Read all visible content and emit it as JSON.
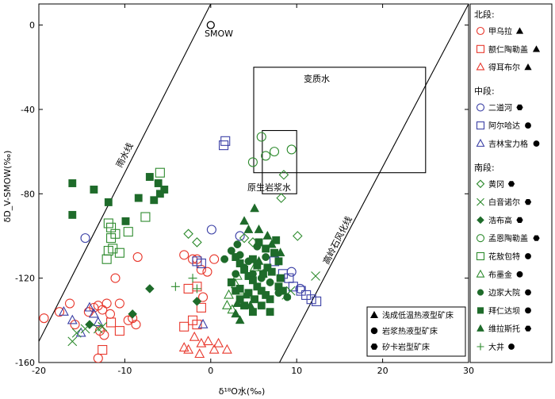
{
  "chart_data": {
    "type": "scatter",
    "xlabel": "δ¹⁸O水(‰)",
    "ylabel": "δD_V-SMOW(‰)",
    "xlim": [
      -20,
      30
    ],
    "ylim": [
      -160,
      10
    ],
    "xticks": [
      "-20",
      "-10",
      "0",
      "10",
      "20",
      "30"
    ],
    "yticks": [
      "0",
      "-40",
      "-80",
      "-120",
      "-160"
    ],
    "reference": {
      "smow_label": "SMOW",
      "smow_point": [
        0,
        0
      ],
      "meteoric_line_label": "雨水线",
      "kaolinite_line_label": "高岭石风化线",
      "metamorphic_label": "变质水",
      "magmatic_label": "原生岩浆水",
      "metamorphic_box": {
        "x": [
          5,
          25
        ],
        "y": [
          -20,
          -70
        ]
      },
      "magmatic_box": {
        "x": [
          6,
          10
        ],
        "y": [
          -50,
          -80
        ]
      }
    },
    "legend_sections": [
      {
        "title": "北段:",
        "entries": [
          {
            "label": "甲乌拉",
            "marker": "circle-open",
            "color": "#e8382d",
            "deposit": "triangle"
          },
          {
            "label": "额仁陶勒盖",
            "marker": "square-open",
            "color": "#e8382d",
            "deposit": "triangle"
          },
          {
            "label": "得耳布尔",
            "marker": "triangle-open",
            "color": "#e8382d",
            "deposit": "triangle"
          }
        ]
      },
      {
        "title": "中段:",
        "entries": [
          {
            "label": "二道河",
            "marker": "circle-open",
            "color": "#3a3fa5",
            "deposit": "hexagon"
          },
          {
            "label": "阿尔哈达",
            "marker": "square-open",
            "color": "#3a3fa5",
            "deposit": "circle"
          },
          {
            "label": "吉林宝力格",
            "marker": "triangle-open",
            "color": "#3a3fa5",
            "deposit": "circle"
          }
        ]
      },
      {
        "title": "南段:",
        "entries": [
          {
            "label": "黄冈",
            "marker": "diamond-open",
            "color": "#2e8b2e",
            "deposit": "hexagon"
          },
          {
            "label": "白音诺尔",
            "marker": "x",
            "color": "#2e8b2e",
            "deposit": "hexagon"
          },
          {
            "label": "浩布高",
            "marker": "diamond-filled",
            "color": "#1e6b2a",
            "deposit": "hexagon"
          },
          {
            "label": "孟恩陶勒盖",
            "marker": "circle-open",
            "color": "#2e8b2e",
            "deposit": "hexagon"
          },
          {
            "label": "花敖包特",
            "marker": "square-open",
            "color": "#2e8b2e",
            "deposit": "circle"
          },
          {
            "label": "布墨金",
            "marker": "triangle-open",
            "color": "#2e8b2e",
            "deposit": "circle"
          },
          {
            "label": "边家大院",
            "marker": "circle-filled",
            "color": "#1e6b2a",
            "deposit": "circle"
          },
          {
            "label": "拜仁达坝",
            "marker": "square-filled",
            "color": "#1e6b2a",
            "deposit": "circle"
          },
          {
            "label": "维拉斯托",
            "marker": "triangle-filled",
            "color": "#1e6b2a",
            "deposit": "hexagon"
          },
          {
            "label": "大井",
            "marker": "plus",
            "color": "#2e8b2e",
            "deposit": "circle"
          }
        ]
      }
    ],
    "deposit_legend": [
      {
        "marker": "triangle",
        "label": "浅成低温热液型矿床"
      },
      {
        "marker": "circle",
        "label": "岩浆热液型矿床"
      },
      {
        "marker": "hexagon",
        "label": "矽卡岩型矿床"
      }
    ],
    "series": [
      {
        "marker": "circle-open",
        "color": "#e8382d",
        "points": [
          [
            -19.4,
            -139
          ],
          [
            -17.6,
            -136
          ],
          [
            -16.4,
            -132
          ],
          [
            -15.8,
            -142
          ],
          [
            -14.2,
            -136
          ],
          [
            -13.6,
            -134
          ],
          [
            -13.1,
            -133
          ],
          [
            -12.6,
            -135
          ],
          [
            -12.1,
            -132
          ],
          [
            -11.7,
            -137
          ],
          [
            -12.9,
            -145
          ],
          [
            -12.4,
            -147
          ],
          [
            -13.1,
            -158
          ],
          [
            -11.1,
            -120
          ],
          [
            -10.6,
            -132
          ],
          [
            -9.6,
            -140
          ],
          [
            -9.1,
            -139
          ],
          [
            -8.7,
            -142
          ],
          [
            -8.5,
            -110
          ],
          [
            -3.1,
            -109
          ],
          [
            -2.1,
            -111
          ],
          [
            -1.6,
            -111
          ],
          [
            -1.1,
            -116
          ],
          [
            -0.4,
            -117
          ],
          [
            0.4,
            -111
          ],
          [
            -0.9,
            -129
          ]
        ]
      },
      {
        "marker": "square-open",
        "color": "#e8382d",
        "points": [
          [
            -12.6,
            -154
          ],
          [
            -11.6,
            -141
          ],
          [
            -10.6,
            -145
          ],
          [
            -2.6,
            -125
          ],
          [
            -1.6,
            -124
          ],
          [
            -1.1,
            -134
          ],
          [
            -3.1,
            -143
          ],
          [
            -2.1,
            -140
          ],
          [
            -1.6,
            -142
          ]
        ]
      },
      {
        "marker": "triangle-open",
        "color": "#e8382d",
        "points": [
          [
            -3.1,
            -153
          ],
          [
            -1.9,
            -148
          ],
          [
            -1.1,
            -151
          ],
          [
            -0.3,
            -150
          ],
          [
            -2.6,
            -154
          ],
          [
            -1.3,
            -156
          ],
          [
            0.4,
            -154
          ],
          [
            0.9,
            -151
          ],
          [
            1.9,
            -154
          ]
        ]
      },
      {
        "marker": "circle-open",
        "color": "#3a3fa5",
        "points": [
          [
            -14.6,
            -101
          ],
          [
            0.1,
            -97
          ],
          [
            3.4,
            -100
          ],
          [
            9.4,
            -117
          ],
          [
            10.4,
            -125
          ]
        ]
      },
      {
        "marker": "square-open",
        "color": "#3a3fa5",
        "points": [
          [
            1.5,
            -57
          ],
          [
            1.7,
            -55
          ],
          [
            -1.6,
            -112
          ],
          [
            -1.1,
            -113
          ],
          [
            7.4,
            -112
          ],
          [
            8.4,
            -118
          ],
          [
            9.1,
            -120
          ],
          [
            9.6,
            -124
          ],
          [
            10.5,
            -126
          ],
          [
            11.1,
            -128
          ],
          [
            11.7,
            -130
          ],
          [
            12.3,
            -131
          ]
        ]
      },
      {
        "marker": "triangle-open",
        "color": "#3a3fa5",
        "points": [
          [
            -17.1,
            -136
          ],
          [
            -16.1,
            -140
          ],
          [
            -15.1,
            -146
          ],
          [
            -14.1,
            -134
          ],
          [
            -13.6,
            -137
          ],
          [
            -13.1,
            -141
          ],
          [
            -0.9,
            -142
          ]
        ]
      },
      {
        "marker": "diamond-open",
        "color": "#2e8b2e",
        "points": [
          [
            -2.6,
            -99
          ],
          [
            -1.6,
            -103
          ],
          [
            8.5,
            -71
          ],
          [
            8.2,
            -82
          ],
          [
            3.9,
            -101
          ],
          [
            4.9,
            -103
          ],
          [
            10.1,
            -100
          ]
        ]
      },
      {
        "marker": "x",
        "color": "#2e8b2e",
        "points": [
          [
            -16.1,
            -150
          ],
          [
            -15.6,
            -146
          ],
          [
            -14.6,
            -144
          ],
          [
            -13.1,
            -144
          ],
          [
            -12.6,
            -143
          ],
          [
            8.8,
            -128
          ],
          [
            9.3,
            -126
          ],
          [
            12.2,
            -119
          ]
        ]
      },
      {
        "marker": "diamond-filled",
        "color": "#1e6b2a",
        "points": [
          [
            -7.1,
            -125
          ],
          [
            -9.1,
            -137
          ],
          [
            -14.1,
            -142
          ],
          [
            -1.6,
            -131
          ]
        ]
      },
      {
        "marker": "circle-open",
        "color": "#2e8b2e",
        "points": [
          [
            5.9,
            -53
          ],
          [
            7.4,
            -60
          ],
          [
            6.4,
            -62
          ],
          [
            4.9,
            -65
          ],
          [
            9.4,
            -59
          ]
        ]
      },
      {
        "marker": "square-open",
        "color": "#2e8b2e",
        "points": [
          [
            -5.9,
            -70
          ],
          [
            -7.6,
            -91
          ],
          [
            -9.6,
            -98
          ],
          [
            -11.1,
            -99
          ],
          [
            -11.6,
            -96
          ],
          [
            -11.9,
            -94
          ],
          [
            -11.6,
            -101
          ],
          [
            -11.9,
            -107
          ],
          [
            -12.1,
            -111
          ],
          [
            -11.4,
            -106
          ],
          [
            -10.6,
            -108
          ]
        ]
      },
      {
        "marker": "triangle-open",
        "color": "#2e8b2e",
        "points": [
          [
            2.1,
            -128
          ],
          [
            2.9,
            -123
          ],
          [
            3.4,
            -126
          ],
          [
            1.9,
            -133
          ],
          [
            2.5,
            -135
          ],
          [
            3.1,
            -119
          ],
          [
            5.1,
            -115
          ]
        ]
      },
      {
        "marker": "circle-filled",
        "color": "#1e6b2a",
        "points": [
          [
            1.6,
            -111
          ],
          [
            2.4,
            -107
          ],
          [
            3.4,
            -109
          ],
          [
            4.4,
            -112
          ],
          [
            5.4,
            -105
          ],
          [
            6.4,
            -110
          ],
          [
            3.9,
            -115
          ],
          [
            4.9,
            -118
          ],
          [
            5.9,
            -120
          ],
          [
            6.9,
            -122
          ],
          [
            7.9,
            -127
          ],
          [
            8.9,
            -129
          ],
          [
            3.1,
            -104
          ],
          [
            2.9,
            -118
          ]
        ]
      },
      {
        "marker": "square-filled",
        "color": "#1e6b2a",
        "points": [
          [
            -16.1,
            -75
          ],
          [
            -16.1,
            -90
          ],
          [
            -13.6,
            -78
          ],
          [
            -11.9,
            -84
          ],
          [
            -7.1,
            -72
          ],
          [
            -6.1,
            -75
          ],
          [
            -5.4,
            -78
          ],
          [
            -5.9,
            -80
          ],
          [
            -6.6,
            -83
          ],
          [
            -8.4,
            -82
          ],
          [
            -9.9,
            -93
          ],
          [
            2.9,
            -110
          ],
          [
            3.4,
            -113
          ],
          [
            3.9,
            -116
          ],
          [
            4.4,
            -119
          ],
          [
            4.9,
            -121
          ],
          [
            5.4,
            -124
          ],
          [
            5.9,
            -126
          ],
          [
            6.4,
            -128
          ],
          [
            6.9,
            -130
          ],
          [
            7.4,
            -108
          ],
          [
            7.9,
            -112
          ],
          [
            5.4,
            -114
          ],
          [
            4.9,
            -111
          ],
          [
            3.4,
            -125
          ],
          [
            4.4,
            -127
          ],
          [
            6.1,
            -118
          ],
          [
            6.6,
            -115
          ],
          [
            7.1,
            -117
          ],
          [
            5.1,
            -130
          ],
          [
            5.9,
            -133
          ],
          [
            3.9,
            -133
          ],
          [
            4.9,
            -136
          ],
          [
            7.9,
            -124
          ],
          [
            6.4,
            -106
          ],
          [
            5.6,
            -103
          ],
          [
            7.6,
            -102
          ],
          [
            8.1,
            -120
          ],
          [
            8.4,
            -126
          ],
          [
            2.4,
            -122
          ],
          [
            2.9,
            -126
          ],
          [
            3.4,
            -130
          ],
          [
            6.9,
            -136
          ]
        ]
      },
      {
        "marker": "triangle-filled",
        "color": "#1e6b2a",
        "points": [
          [
            5.1,
            -87
          ],
          [
            3.9,
            -93
          ],
          [
            4.4,
            -97
          ],
          [
            5.6,
            -97
          ],
          [
            3.1,
            -132
          ],
          [
            2.9,
            -137
          ],
          [
            3.4,
            -140
          ],
          [
            4.6,
            -133
          ],
          [
            5.6,
            -112
          ],
          [
            6.6,
            -100
          ],
          [
            7.1,
            -104
          ],
          [
            8.1,
            -108
          ],
          [
            6.1,
            -118
          ],
          [
            4.1,
            -128
          ]
        ]
      },
      {
        "marker": "plus",
        "color": "#2e8b2e",
        "points": [
          [
            -2.1,
            -120
          ],
          [
            -1.6,
            -125
          ],
          [
            -4.1,
            -124
          ]
        ]
      }
    ],
    "small_open_diamond_near_magmatic": [
      8.5,
      -71
    ]
  }
}
